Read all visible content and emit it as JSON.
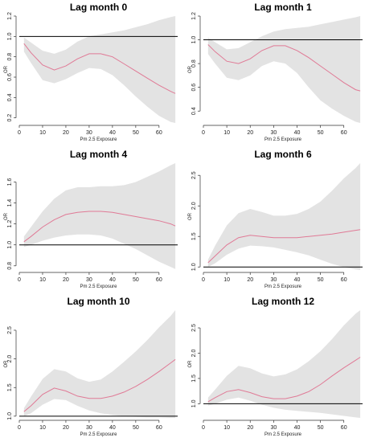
{
  "chart_data": [
    {
      "type": "line",
      "title": "Lag month 0",
      "xlabel": "Pm 2.5 Exposure",
      "ylabel": "OR",
      "xlim": [
        0,
        68
      ],
      "ylim": [
        0.15,
        1.2
      ],
      "xticks": [
        0,
        10,
        20,
        30,
        40,
        50,
        60
      ],
      "yticks": [
        0.2,
        0.4,
        0.6,
        0.8,
        1.0,
        1.2
      ],
      "ytick_labels": [
        "0.2",
        "0.4",
        "0.6",
        "0.8",
        "1.0",
        "1.2"
      ],
      "ref_line": 1.0,
      "x": [
        2,
        5,
        10,
        15,
        20,
        25,
        30,
        35,
        40,
        45,
        50,
        55,
        60,
        65,
        67
      ],
      "y": [
        0.93,
        0.84,
        0.72,
        0.67,
        0.71,
        0.78,
        0.83,
        0.83,
        0.8,
        0.73,
        0.66,
        0.59,
        0.52,
        0.46,
        0.44
      ],
      "lower": [
        0.85,
        0.74,
        0.57,
        0.54,
        0.58,
        0.64,
        0.69,
        0.68,
        0.62,
        0.52,
        0.41,
        0.31,
        0.22,
        0.16,
        0.15
      ],
      "upper": [
        0.99,
        0.94,
        0.86,
        0.83,
        0.87,
        0.95,
        1.0,
        1.02,
        1.04,
        1.06,
        1.09,
        1.12,
        1.16,
        1.19,
        1.2
      ]
    },
    {
      "type": "line",
      "title": "Lag month 1",
      "xlabel": "Pm 2.5 Exposure",
      "ylabel": "OR",
      "xlim": [
        0,
        68
      ],
      "ylim": [
        0.3,
        1.2
      ],
      "xticks": [
        0,
        10,
        20,
        30,
        40,
        50,
        60
      ],
      "yticks": [
        0.4,
        0.6,
        0.8,
        1.0,
        1.2
      ],
      "ytick_labels": [
        "0.4",
        "0.6",
        "0.8",
        "1.0",
        "1.2"
      ],
      "ref_line": 1.0,
      "x": [
        2,
        5,
        10,
        15,
        20,
        25,
        30,
        35,
        40,
        45,
        50,
        55,
        60,
        65,
        67
      ],
      "y": [
        0.96,
        0.9,
        0.82,
        0.8,
        0.84,
        0.91,
        0.95,
        0.95,
        0.91,
        0.85,
        0.78,
        0.71,
        0.64,
        0.58,
        0.57
      ],
      "lower": [
        0.88,
        0.8,
        0.68,
        0.66,
        0.7,
        0.78,
        0.82,
        0.8,
        0.72,
        0.6,
        0.49,
        0.42,
        0.36,
        0.31,
        0.3
      ],
      "upper": [
        1.02,
        0.98,
        0.92,
        0.93,
        0.98,
        1.03,
        1.07,
        1.09,
        1.1,
        1.11,
        1.13,
        1.15,
        1.17,
        1.19,
        1.2
      ]
    },
    {
      "type": "line",
      "title": "Lag month 4",
      "xlabel": "Pm 2.5 Exposure",
      "ylabel": "OR",
      "xlim": [
        0,
        68
      ],
      "ylim": [
        0.76,
        1.78
      ],
      "xticks": [
        0,
        10,
        20,
        30,
        40,
        50,
        60
      ],
      "yticks": [
        0.8,
        1.0,
        1.2,
        1.4,
        1.6
      ],
      "ytick_labels": [
        "0.8",
        "1.0",
        "1.2",
        "1.4",
        "1.6"
      ],
      "ref_line": 1.0,
      "x": [
        2,
        5,
        10,
        15,
        20,
        25,
        30,
        35,
        40,
        45,
        50,
        55,
        60,
        65,
        67
      ],
      "y": [
        1.03,
        1.08,
        1.17,
        1.24,
        1.29,
        1.31,
        1.32,
        1.32,
        1.31,
        1.29,
        1.27,
        1.25,
        1.23,
        1.2,
        1.18
      ],
      "lower": [
        0.98,
        1.0,
        1.04,
        1.07,
        1.09,
        1.1,
        1.1,
        1.09,
        1.06,
        1.01,
        0.96,
        0.9,
        0.84,
        0.79,
        0.77
      ],
      "upper": [
        1.08,
        1.17,
        1.32,
        1.44,
        1.52,
        1.55,
        1.55,
        1.56,
        1.56,
        1.57,
        1.6,
        1.65,
        1.7,
        1.76,
        1.78
      ]
    },
    {
      "type": "line",
      "title": "Lag month 6",
      "xlabel": "Pm 2.5 Exposure",
      "ylabel": "OR",
      "xlim": [
        0,
        68
      ],
      "ylim": [
        0.95,
        2.7
      ],
      "xticks": [
        0,
        10,
        20,
        30,
        40,
        50,
        60
      ],
      "yticks": [
        1.0,
        1.5,
        2.0,
        2.5
      ],
      "ytick_labels": [
        "1.0",
        "1.5",
        "2.0",
        "2.5"
      ],
      "ref_line": 1.0,
      "x": [
        2,
        5,
        10,
        15,
        20,
        25,
        30,
        35,
        40,
        45,
        50,
        55,
        60,
        65,
        67
      ],
      "y": [
        1.07,
        1.18,
        1.36,
        1.48,
        1.52,
        1.5,
        1.48,
        1.48,
        1.48,
        1.5,
        1.52,
        1.54,
        1.57,
        1.6,
        1.61
      ],
      "lower": [
        1.0,
        1.06,
        1.2,
        1.3,
        1.35,
        1.34,
        1.32,
        1.28,
        1.24,
        1.19,
        1.12,
        1.05,
        1.0,
        0.96,
        0.95
      ],
      "upper": [
        1.12,
        1.35,
        1.68,
        1.88,
        1.95,
        1.9,
        1.84,
        1.84,
        1.87,
        1.95,
        2.07,
        2.25,
        2.45,
        2.62,
        2.7
      ]
    },
    {
      "type": "line",
      "title": "Lag month 10",
      "xlabel": "Pm 2.5 Exposure",
      "ylabel": "OR",
      "xlim": [
        0,
        68
      ],
      "ylim": [
        0.97,
        2.85
      ],
      "xticks": [
        0,
        10,
        20,
        30,
        40,
        50,
        60
      ],
      "yticks": [
        1.0,
        1.5,
        2.0,
        2.5
      ],
      "ytick_labels": [
        "1.0",
        "1.5",
        "2.0",
        "2.5"
      ],
      "ref_line": 1.0,
      "x": [
        2,
        5,
        10,
        15,
        20,
        25,
        30,
        35,
        40,
        45,
        50,
        55,
        60,
        65,
        67
      ],
      "y": [
        1.08,
        1.18,
        1.38,
        1.49,
        1.44,
        1.35,
        1.31,
        1.31,
        1.35,
        1.42,
        1.52,
        1.64,
        1.78,
        1.93,
        1.99
      ],
      "lower": [
        1.0,
        1.05,
        1.2,
        1.3,
        1.28,
        1.18,
        1.1,
        1.05,
        1.02,
        1.0,
        0.99,
        0.98,
        0.98,
        0.97,
        0.97
      ],
      "upper": [
        1.14,
        1.34,
        1.65,
        1.82,
        1.78,
        1.66,
        1.6,
        1.64,
        1.78,
        1.95,
        2.13,
        2.33,
        2.55,
        2.75,
        2.85
      ]
    },
    {
      "type": "line",
      "title": "Lag month 12",
      "xlabel": "Pm 2.5 Exposure",
      "ylabel": "OR",
      "xlim": [
        0,
        68
      ],
      "ylim": [
        0.72,
        2.85
      ],
      "xticks": [
        0,
        10,
        20,
        30,
        40,
        50,
        60
      ],
      "yticks": [
        1.0,
        1.5,
        2.0,
        2.5
      ],
      "ytick_labels": [
        "1.0",
        "1.5",
        "2.0",
        "2.5"
      ],
      "ref_line": 1.0,
      "x": [
        2,
        5,
        10,
        15,
        20,
        25,
        30,
        35,
        40,
        45,
        50,
        55,
        60,
        65,
        67
      ],
      "y": [
        1.04,
        1.12,
        1.24,
        1.28,
        1.22,
        1.14,
        1.1,
        1.1,
        1.15,
        1.24,
        1.38,
        1.55,
        1.71,
        1.86,
        1.92
      ],
      "lower": [
        0.96,
        1.0,
        1.08,
        1.12,
        1.06,
        0.98,
        0.92,
        0.88,
        0.86,
        0.84,
        0.82,
        0.79,
        0.76,
        0.73,
        0.72
      ],
      "upper": [
        1.12,
        1.28,
        1.55,
        1.75,
        1.7,
        1.6,
        1.54,
        1.58,
        1.68,
        1.84,
        2.04,
        2.28,
        2.55,
        2.78,
        2.85
      ]
    }
  ],
  "style": {
    "band_color": "#e3e3e3",
    "line_color": "#e07a96",
    "ref_color": "#000000",
    "axis_color": "#333333"
  }
}
